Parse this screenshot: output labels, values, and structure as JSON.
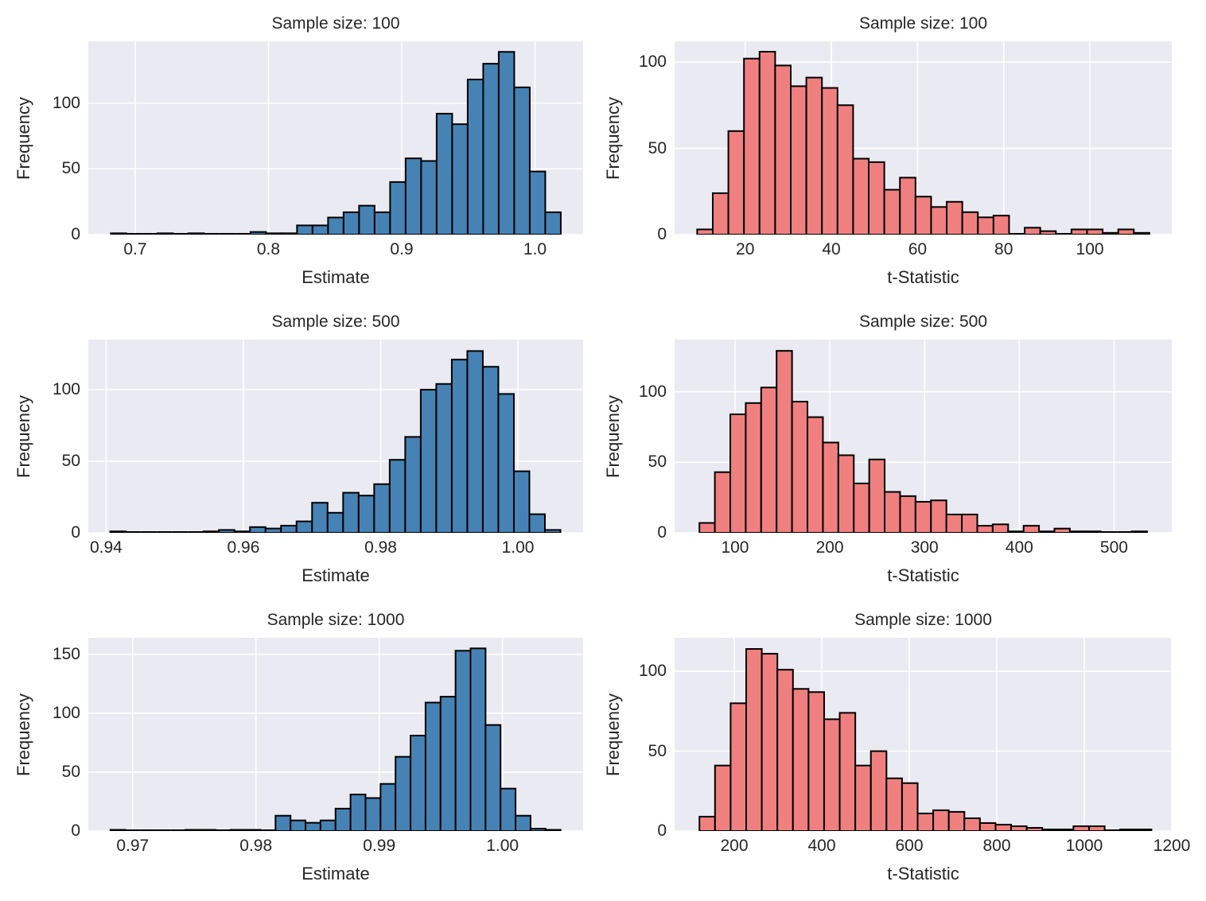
{
  "figure": {
    "background": "#ffffff",
    "axes_background": "#eaeaf2",
    "grid_color": "#ffffff",
    "text_color": "#262626",
    "bar_edge_color": "#000000",
    "estimate_bar_color": "#4682b4",
    "tstat_bar_color": "#f08080"
  },
  "chart_data": [
    {
      "type": "bar",
      "title": "Sample size: 100",
      "xlabel": "Estimate",
      "ylabel": "Frequency",
      "color": "#4682b4",
      "bin_start": 0.6817,
      "bin_width": 0.011643,
      "values": [
        1,
        0,
        0,
        1,
        0,
        1,
        0,
        0,
        0,
        2,
        1,
        1,
        7,
        7,
        13,
        17,
        22,
        17,
        40,
        58,
        56,
        92,
        84,
        118,
        130,
        139,
        112,
        48,
        17
      ],
      "xlim": [
        0.6648,
        1.0361
      ],
      "ylim": [
        0,
        147
      ],
      "xticks": [
        0.7,
        0.8,
        0.9,
        1.0
      ],
      "xtick_labels": [
        "0.7",
        "0.8",
        "0.9",
        "1.0"
      ],
      "yticks": [
        0,
        50,
        100
      ],
      "ytick_labels": [
        "0",
        "50",
        "100"
      ],
      "grid": true,
      "legend": "none"
    },
    {
      "type": "bar",
      "title": "Sample size: 100",
      "xlabel": "t-Statistic",
      "ylabel": "Frequency",
      "color": "#f08080",
      "bin_start": 8.86,
      "bin_width": 3.619,
      "values": [
        3,
        24,
        60,
        102,
        106,
        98,
        86,
        91,
        85,
        75,
        44,
        42,
        26,
        33,
        22,
        16,
        19,
        13,
        10,
        11,
        0,
        4,
        2,
        0,
        3,
        3,
        1,
        3,
        1
      ],
      "xlim": [
        3.62,
        119.0
      ],
      "ylim": [
        0,
        112
      ],
      "xticks": [
        20,
        40,
        60,
        80,
        100
      ],
      "xtick_labels": [
        "20",
        "40",
        "60",
        "80",
        "100"
      ],
      "yticks": [
        0,
        50,
        100
      ],
      "ytick_labels": [
        "0",
        "50",
        "100"
      ],
      "grid": true,
      "legend": "none"
    },
    {
      "type": "bar",
      "title": "Sample size: 500",
      "xlabel": "Estimate",
      "ylabel": "Frequency",
      "color": "#4682b4",
      "bin_start": 0.9406,
      "bin_width": 0.002262,
      "values": [
        1,
        0,
        0,
        0,
        0,
        0,
        1,
        2,
        1,
        4,
        3,
        5,
        8,
        21,
        14,
        28,
        26,
        34,
        51,
        67,
        100,
        104,
        121,
        127,
        116,
        97,
        43,
        13,
        2
      ],
      "xlim": [
        0.9374,
        1.0095
      ],
      "ylim": [
        0,
        135
      ],
      "xticks": [
        0.94,
        0.96,
        0.98,
        1.0
      ],
      "xtick_labels": [
        "0.94",
        "0.96",
        "0.98",
        "1.00"
      ],
      "yticks": [
        0,
        50,
        100
      ],
      "ytick_labels": [
        "0",
        "50",
        "100"
      ],
      "grid": true,
      "legend": "none"
    },
    {
      "type": "bar",
      "title": "Sample size: 500",
      "xlabel": "t-Statistic",
      "ylabel": "Frequency",
      "color": "#f08080",
      "bin_start": 62.4,
      "bin_width": 16.29,
      "values": [
        7,
        43,
        84,
        92,
        103,
        129,
        93,
        82,
        64,
        55,
        35,
        52,
        29,
        26,
        22,
        23,
        13,
        13,
        5,
        6,
        1,
        5,
        1,
        3,
        1,
        1,
        0,
        0,
        1
      ],
      "xlim": [
        36.2,
        560.9
      ],
      "ylim": [
        0,
        137
      ],
      "xticks": [
        100,
        200,
        300,
        400,
        500
      ],
      "xtick_labels": [
        "100",
        "200",
        "300",
        "400",
        "500"
      ],
      "yticks": [
        0,
        50,
        100
      ],
      "ytick_labels": [
        "0",
        "50",
        "100"
      ],
      "grid": true,
      "legend": "none"
    },
    {
      "type": "bar",
      "title": "Sample size: 1000",
      "xlabel": "Estimate",
      "ylabel": "Frequency",
      "color": "#4682b4",
      "bin_start": 0.9682,
      "bin_width": 0.001217,
      "values": [
        1,
        0,
        0,
        0,
        0,
        1,
        1,
        0,
        1,
        1,
        0,
        13,
        9,
        7,
        9,
        19,
        31,
        28,
        40,
        63,
        81,
        109,
        114,
        153,
        155,
        90,
        36,
        13,
        2,
        1
      ],
      "xlim": [
        0.9664,
        1.00654
      ],
      "ylim": [
        0,
        164
      ],
      "xticks": [
        0.97,
        0.98,
        0.99,
        1.0
      ],
      "xtick_labels": [
        "0.97",
        "0.98",
        "0.99",
        "1.00"
      ],
      "yticks": [
        0,
        50,
        100,
        150
      ],
      "ytick_labels": [
        "0",
        "50",
        "100",
        "150"
      ],
      "grid": true,
      "legend": "none"
    },
    {
      "type": "bar",
      "title": "Sample size: 1000",
      "xlabel": "t-Statistic",
      "ylabel": "Frequency",
      "color": "#f08080",
      "bin_start": 120.4,
      "bin_width": 35.62,
      "values": [
        9,
        41,
        80,
        114,
        111,
        101,
        89,
        87,
        70,
        74,
        41,
        50,
        33,
        30,
        11,
        13,
        12,
        8,
        5,
        4,
        3,
        2,
        1,
        1,
        3,
        3,
        0,
        1,
        1
      ],
      "xlim": [
        63.6,
        1200
      ],
      "ylim": [
        0,
        121
      ],
      "xticks": [
        200,
        400,
        600,
        800,
        1000,
        1200
      ],
      "xtick_labels": [
        "200",
        "400",
        "600",
        "800",
        "1000",
        "1200"
      ],
      "yticks": [
        0,
        50,
        100
      ],
      "ytick_labels": [
        "0",
        "50",
        "100"
      ],
      "grid": true,
      "legend": "none"
    }
  ]
}
